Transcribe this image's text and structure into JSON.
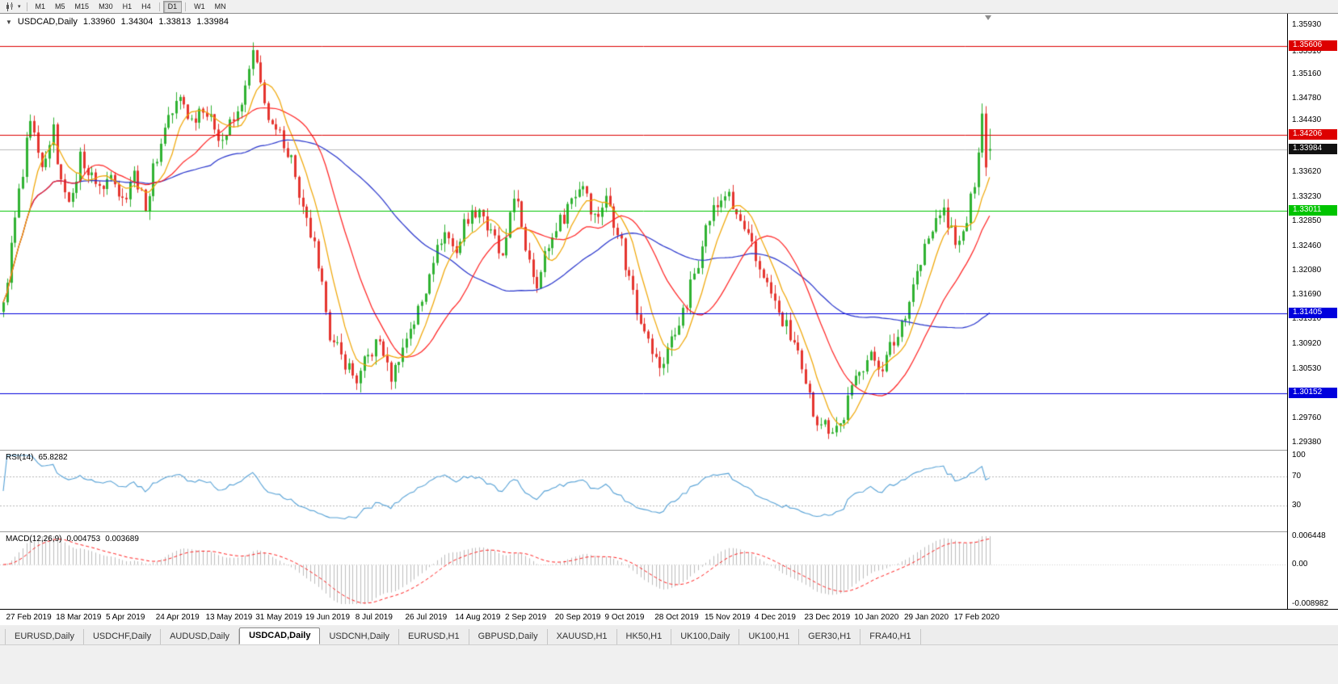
{
  "toolbar": {
    "chart_type_button": {
      "icon": "candlestick-chart-icon",
      "caret": "▾"
    },
    "timeframes": [
      {
        "label": "M1"
      },
      {
        "label": "M5"
      },
      {
        "label": "M15"
      },
      {
        "label": "M30"
      },
      {
        "label": "H1"
      },
      {
        "label": "H4"
      },
      {
        "sep": true
      },
      {
        "label": "D1",
        "active": true
      },
      {
        "sep": true
      },
      {
        "label": "W1"
      },
      {
        "label": "MN"
      }
    ]
  },
  "chart_header": {
    "collapse_icon": "▼",
    "symbol": "USDCAD,Daily",
    "open": "1.33960",
    "high": "1.34304",
    "low": "1.33813",
    "close": "1.33984"
  },
  "colors": {
    "bull": "#30b232",
    "bear": "#e5352f",
    "current_line": "#bbbbbb"
  },
  "current_price": 1.33984,
  "levels": [
    {
      "price": 1.35606,
      "color": "#dd0000"
    },
    {
      "price": 1.34206,
      "color": "#dd0000"
    },
    {
      "price": 1.33011,
      "color": "#00c400"
    },
    {
      "price": 1.31405,
      "color": "#0000dd"
    },
    {
      "price": 1.30152,
      "color": "#0000dd"
    }
  ],
  "price_axis": {
    "ticks": [
      "1.35930",
      "1.35510",
      "1.35160",
      "1.34780",
      "1.34430",
      "1.33620",
      "1.33230",
      "1.32850",
      "1.32460",
      "1.32080",
      "1.31690",
      "1.31310",
      "1.30920",
      "1.30530",
      "1.29760",
      "1.29380"
    ],
    "badges": [
      {
        "text": "1.35606",
        "price": 1.35606,
        "bg": "#dd0000",
        "fg": "#ffffff"
      },
      {
        "text": "1.34206",
        "price": 1.34206,
        "bg": "#dd0000",
        "fg": "#ffffff"
      },
      {
        "text": "1.33984",
        "price": 1.33984,
        "bg": "#111111",
        "fg": "#ffffff"
      },
      {
        "text": "1.33011",
        "price": 1.33011,
        "bg": "#00c400",
        "fg": "#ffffff"
      },
      {
        "text": "1.31405",
        "price": 1.31405,
        "bg": "#0000dd",
        "fg": "#ffffff"
      },
      {
        "text": "1.30152",
        "price": 1.30152,
        "bg": "#0000dd",
        "fg": "#ffffff"
      }
    ]
  },
  "rsi": {
    "label": "RSI(14)",
    "value": "65.8282",
    "axis_labels": [
      "100",
      "70",
      "30"
    ],
    "axis_values": [
      100,
      70,
      30
    ],
    "color": "#55a1d6"
  },
  "macd": {
    "label": "MACD(12,26,9)",
    "value1": "0.004753",
    "value2": "0.003689",
    "axis_top": "0.006448",
    "axis_zero": "0.00",
    "axis_bottom": "-0.008982",
    "hist_color": "#bdbdbd",
    "signal_color": "#ff2020"
  },
  "date_axis": {
    "labels": [
      "27 Feb 2019",
      "18 Mar 2019",
      "5 Apr 2019",
      "24 Apr 2019",
      "13 May 2019",
      "31 May 2019",
      "19 Jun 2019",
      "8 Jul 2019",
      "26 Jul 2019",
      "14 Aug 2019",
      "2 Sep 2019",
      "20 Sep 2019",
      "9 Oct 2019",
      "28 Oct 2019",
      "15 Nov 2019",
      "4 Dec 2019",
      "23 Dec 2019",
      "10 Jan 2020",
      "29 Jan 2020",
      "17 Feb 2020"
    ],
    "bars": [
      2,
      15,
      28,
      41,
      54,
      67,
      80,
      93,
      106,
      119,
      132,
      145,
      158,
      171,
      184,
      197,
      210,
      223,
      236,
      249
    ]
  },
  "tabs": [
    {
      "label": "EURUSD,Daily"
    },
    {
      "label": "USDCHF,Daily"
    },
    {
      "label": "AUDUSD,Daily"
    },
    {
      "label": "USDCAD,Daily",
      "active": true
    },
    {
      "label": "USDCNH,Daily"
    },
    {
      "label": "EURUSD,H1"
    },
    {
      "label": "GBPUSD,Daily"
    },
    {
      "label": "XAUUSD,H1"
    },
    {
      "label": "HK50,H1"
    },
    {
      "label": "UK100,Daily"
    },
    {
      "label": "UK100,H1"
    },
    {
      "label": "GER30,H1"
    },
    {
      "label": "FRA40,H1"
    }
  ],
  "chart_data": {
    "type": "candlestick",
    "symbol": "USDCAD",
    "timeframe": "Daily",
    "title": "USDCAD,Daily",
    "last_bar": {
      "open": 1.3396,
      "high": 1.34304,
      "low": 1.33813,
      "close": 1.33984
    },
    "y_range": [
      1.2926,
      1.3611
    ],
    "bars_total": 258,
    "key_levels": [
      1.35606,
      1.34206,
      1.33011,
      1.31405,
      1.30152
    ],
    "indicators": {
      "rsi": {
        "period": 14,
        "current": 65.8282,
        "levels": [
          70,
          30
        ]
      },
      "macd": {
        "fast": 12,
        "slow": 26,
        "signal": 9,
        "current_main": 0.004753,
        "current_signal": 0.003689,
        "scale_max": 0.006448,
        "scale_min": -0.008982
      }
    },
    "moving_averages": [
      {
        "period": 8,
        "color": "#f0a500"
      },
      {
        "period": 21,
        "color": "#ff2020"
      },
      {
        "period": 55,
        "color": "#2633cc"
      }
    ],
    "anchors": [
      [
        0,
        1.315
      ],
      [
        2,
        1.324
      ],
      [
        4,
        1.333
      ],
      [
        7,
        1.3435
      ],
      [
        10,
        1.336
      ],
      [
        13,
        1.343
      ],
      [
        15,
        1.3345
      ],
      [
        18,
        1.3315
      ],
      [
        20,
        1.339
      ],
      [
        23,
        1.3355
      ],
      [
        26,
        1.333
      ],
      [
        28,
        1.337
      ],
      [
        31,
        1.332
      ],
      [
        34,
        1.3355
      ],
      [
        37,
        1.3315
      ],
      [
        40,
        1.3385
      ],
      [
        43,
        1.345
      ],
      [
        46,
        1.348
      ],
      [
        49,
        1.344
      ],
      [
        52,
        1.347
      ],
      [
        54,
        1.3445
      ],
      [
        57,
        1.341
      ],
      [
        60,
        1.3445
      ],
      [
        63,
        1.349
      ],
      [
        65,
        1.3545
      ],
      [
        67,
        1.35
      ],
      [
        70,
        1.343
      ],
      [
        72,
        1.3415
      ],
      [
        75,
        1.3385
      ],
      [
        78,
        1.33
      ],
      [
        80,
        1.326
      ],
      [
        83,
        1.318
      ],
      [
        86,
        1.309
      ],
      [
        89,
        1.306
      ],
      [
        92,
        1.304
      ],
      [
        95,
        1.307
      ],
      [
        98,
        1.3095
      ],
      [
        101,
        1.3045
      ],
      [
        104,
        1.308
      ],
      [
        106,
        1.312
      ],
      [
        109,
        1.316
      ],
      [
        112,
        1.3225
      ],
      [
        115,
        1.327
      ],
      [
        118,
        1.324
      ],
      [
        121,
        1.329
      ],
      [
        124,
        1.331
      ],
      [
        127,
        1.326
      ],
      [
        130,
        1.3225
      ],
      [
        133,
        1.333
      ],
      [
        136,
        1.324
      ],
      [
        139,
        1.3195
      ],
      [
        142,
        1.3245
      ],
      [
        145,
        1.3285
      ],
      [
        148,
        1.3325
      ],
      [
        151,
        1.334
      ],
      [
        154,
        1.3295
      ],
      [
        157,
        1.332
      ],
      [
        160,
        1.327
      ],
      [
        163,
        1.32
      ],
      [
        166,
        1.313
      ],
      [
        169,
        1.308
      ],
      [
        171,
        1.306
      ],
      [
        174,
        1.3095
      ],
      [
        177,
        1.314
      ],
      [
        180,
        1.3205
      ],
      [
        183,
        1.327
      ],
      [
        185,
        1.3305
      ],
      [
        188,
        1.333
      ],
      [
        191,
        1.329
      ],
      [
        194,
        1.326
      ],
      [
        197,
        1.321
      ],
      [
        200,
        1.317
      ],
      [
        203,
        1.313
      ],
      [
        206,
        1.309
      ],
      [
        209,
        1.3025
      ],
      [
        212,
        1.2975
      ],
      [
        215,
        1.2958
      ],
      [
        218,
        1.297
      ],
      [
        221,
        1.3015
      ],
      [
        223,
        1.3055
      ],
      [
        226,
        1.3075
      ],
      [
        229,
        1.3055
      ],
      [
        232,
        1.3095
      ],
      [
        235,
        1.3145
      ],
      [
        238,
        1.32
      ],
      [
        241,
        1.326
      ],
      [
        244,
        1.33
      ],
      [
        247,
        1.327
      ],
      [
        249,
        1.325
      ],
      [
        251,
        1.3285
      ],
      [
        253,
        1.3345
      ],
      [
        255,
        1.3455
      ],
      [
        256,
        1.337
      ],
      [
        257,
        1.3398
      ]
    ],
    "overrides": {
      "65": {
        "high": 1.3566
      },
      "93": {
        "low": 1.3016
      },
      "102": {
        "low": 1.3022
      },
      "215": {
        "low": 1.2943
      },
      "255": {
        "high": 1.347
      },
      "257": {
        "open": 1.3396,
        "high": 1.34304,
        "low": 1.33813,
        "close": 1.33984
      }
    }
  }
}
